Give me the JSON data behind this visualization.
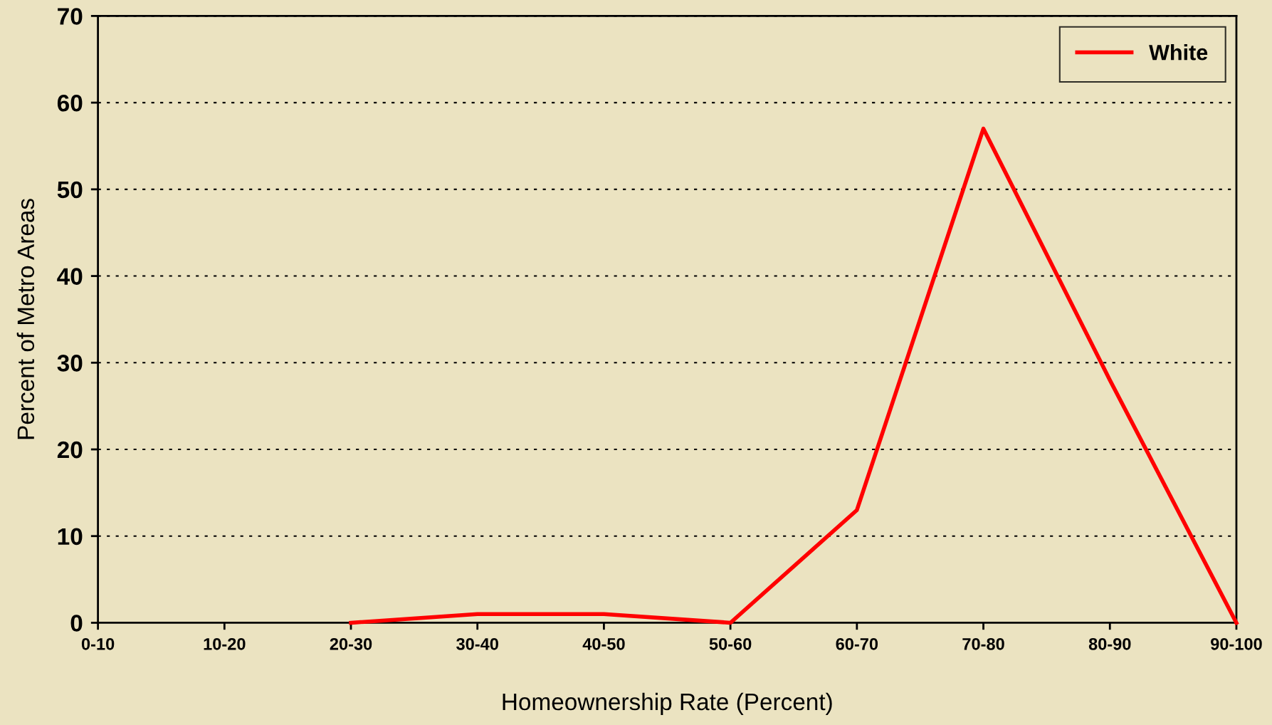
{
  "chart_data": {
    "type": "line",
    "xlabel": "Homeownership Rate (Percent)",
    "ylabel": "Percent of Metro Areas",
    "categories": [
      "0-10",
      "10-20",
      "20-30",
      "30-40",
      "40-50",
      "50-60",
      "60-70",
      "70-80",
      "80-90",
      "90-100"
    ],
    "series": [
      {
        "name": "White",
        "color": "#ff0000",
        "values": [
          null,
          null,
          0,
          1,
          1,
          0,
          13,
          57,
          28,
          0
        ]
      }
    ],
    "ylim": [
      0,
      70
    ],
    "yticks": [
      0,
      10,
      20,
      30,
      40,
      50,
      60,
      70
    ],
    "grid": "y",
    "legend": "top right",
    "marker": "none",
    "line_style": "solid"
  }
}
